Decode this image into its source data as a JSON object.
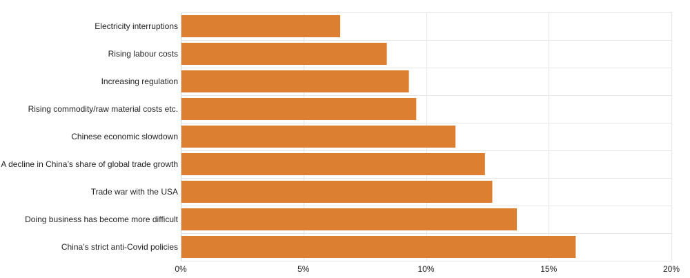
{
  "chart_data": {
    "type": "bar",
    "orientation": "horizontal",
    "title": "",
    "xlabel": "",
    "ylabel": "",
    "categories": [
      "Electricity interruptions",
      "Rising labour costs",
      "Increasing regulation",
      "Rising commodity/raw material costs etc.",
      "Chinese economic slowdown",
      "A decline in China’s share of global trade growth",
      "Trade war with the USA",
      "Doing business has become more difficult",
      "China’s strict anti-Covid policies"
    ],
    "values": [
      6.5,
      8.4,
      9.3,
      9.6,
      11.2,
      12.4,
      12.7,
      13.7,
      16.1
    ],
    "xlim": [
      0,
      20
    ],
    "xticks": [
      0,
      5,
      10,
      15,
      20
    ],
    "xtick_labels": [
      "0%",
      "5%",
      "10%",
      "15%",
      "20%"
    ],
    "value_unit": "%",
    "bar_color": "#dd7f31",
    "grid": true,
    "legend": "none"
  }
}
